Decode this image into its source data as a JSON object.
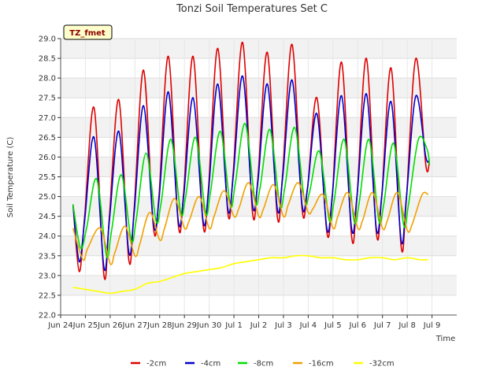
{
  "chart_data": {
    "type": "line",
    "title": "Tonzi Soil Temperatures Set C",
    "xlabel": "Time",
    "ylabel": "Soil Temperature (C)",
    "badge": "TZ_fmet",
    "ylim": [
      22.0,
      29.0
    ],
    "yticks": [
      "22.0",
      "22.5",
      "23.0",
      "23.5",
      "24.0",
      "24.5",
      "25.0",
      "25.5",
      "26.0",
      "26.5",
      "27.0",
      "27.5",
      "28.0",
      "28.5",
      "29.0"
    ],
    "xlim": [
      0,
      16
    ],
    "xticks": [
      "Jun 24",
      "Jun 25",
      "Jun 26",
      "Jun 27",
      "Jun 28",
      "Jun 29",
      "Jun 30",
      "Jul 1",
      "Jul 2",
      "Jul 3",
      "Jul 4",
      "Jul 5",
      "Jul 6",
      "Jul 7",
      "Jul 8",
      "Jul 9"
    ],
    "x_unit": "days since Jun 24",
    "grid": true,
    "legend_position": "bottom",
    "series": [
      {
        "name": "-2cm",
        "color": "#dd0000",
        "x": [
          0.5,
          0.75,
          0.97,
          1.35,
          1.75,
          1.97,
          2.35,
          2.75,
          2.97,
          3.35,
          3.75,
          3.97,
          4.35,
          4.75,
          4.97,
          5.35,
          5.75,
          5.97,
          6.35,
          6.75,
          6.97,
          7.35,
          7.75,
          7.97,
          8.35,
          8.75,
          8.97,
          9.35,
          9.75,
          9.97,
          10.35,
          10.75,
          10.97,
          11.35,
          11.75,
          11.97,
          12.35,
          12.75,
          12.97,
          13.35,
          13.75,
          13.97,
          14.35,
          14.75,
          14.9
        ],
        "y": [
          24.8,
          23.1,
          24.5,
          27.25,
          23.0,
          24.5,
          27.45,
          23.4,
          24.7,
          28.2,
          24.2,
          25.0,
          28.55,
          24.3,
          25.1,
          28.55,
          24.3,
          25.2,
          28.75,
          24.6,
          25.6,
          28.9,
          24.6,
          25.5,
          28.65,
          24.5,
          25.6,
          28.85,
          24.7,
          25.2,
          27.5,
          24.1,
          25.0,
          28.4,
          24.0,
          25.0,
          28.5,
          24.1,
          25.0,
          28.25,
          23.75,
          25.0,
          28.5,
          25.8,
          25.9
        ]
      },
      {
        "name": "-4cm",
        "color": "#0000cc",
        "x": [
          0.5,
          0.75,
          0.97,
          1.35,
          1.75,
          1.97,
          2.35,
          2.75,
          2.97,
          3.35,
          3.75,
          3.97,
          4.35,
          4.75,
          4.97,
          5.35,
          5.75,
          5.97,
          6.35,
          6.75,
          6.97,
          7.35,
          7.75,
          7.97,
          8.35,
          8.75,
          8.97,
          9.35,
          9.75,
          9.97,
          10.35,
          10.75,
          10.97,
          11.35,
          11.75,
          11.97,
          12.35,
          12.75,
          12.97,
          13.35,
          13.75,
          13.97,
          14.35,
          14.75,
          14.9
        ],
        "y": [
          24.8,
          23.35,
          24.4,
          26.5,
          23.2,
          24.4,
          26.65,
          23.6,
          24.6,
          27.3,
          24.3,
          24.9,
          27.65,
          24.4,
          25.0,
          27.5,
          24.4,
          25.1,
          27.85,
          24.7,
          25.5,
          28.05,
          24.8,
          25.4,
          27.85,
          24.7,
          25.5,
          27.95,
          24.8,
          25.2,
          27.1,
          24.2,
          25.0,
          27.55,
          24.2,
          25.0,
          27.6,
          24.2,
          25.0,
          27.4,
          23.9,
          25.0,
          27.55,
          26.0,
          25.95
        ]
      },
      {
        "name": "-8cm",
        "color": "#00dd00",
        "x": [
          0.5,
          0.8,
          1.05,
          1.45,
          1.85,
          2.05,
          2.45,
          2.85,
          3.05,
          3.45,
          3.85,
          4.05,
          4.45,
          4.85,
          5.05,
          5.45,
          5.85,
          6.05,
          6.45,
          6.85,
          7.05,
          7.45,
          7.85,
          8.05,
          8.45,
          8.85,
          9.05,
          9.45,
          9.85,
          10.05,
          10.45,
          10.85,
          11.05,
          11.45,
          11.85,
          12.05,
          12.45,
          12.85,
          13.05,
          13.45,
          13.85,
          14.05,
          14.45,
          14.8,
          14.9
        ],
        "y": [
          24.8,
          23.7,
          24.2,
          25.45,
          23.5,
          24.1,
          25.55,
          23.9,
          24.4,
          26.1,
          24.4,
          24.8,
          26.45,
          24.6,
          25.0,
          26.5,
          24.6,
          25.1,
          26.65,
          24.8,
          25.3,
          26.85,
          24.9,
          25.2,
          26.7,
          24.8,
          25.2,
          26.75,
          24.9,
          25.1,
          26.15,
          24.4,
          24.9,
          26.45,
          24.4,
          24.8,
          26.45,
          24.4,
          24.8,
          26.35,
          24.3,
          24.8,
          26.45,
          26.2,
          25.8
        ]
      },
      {
        "name": "-16cm",
        "color": "#f0a000",
        "x": [
          0.5,
          0.9,
          1.1,
          1.6,
          2.0,
          2.2,
          2.6,
          3.0,
          3.2,
          3.6,
          4.0,
          4.2,
          4.6,
          5.0,
          5.2,
          5.6,
          6.0,
          6.2,
          6.6,
          7.0,
          7.2,
          7.6,
          8.0,
          8.2,
          8.6,
          9.0,
          9.2,
          9.6,
          10.0,
          10.2,
          10.6,
          11.0,
          11.2,
          11.6,
          12.0,
          12.2,
          12.6,
          13.0,
          13.2,
          13.6,
          14.0,
          14.2,
          14.6,
          14.85
        ],
        "y": [
          24.2,
          23.4,
          23.7,
          24.2,
          23.3,
          23.6,
          24.25,
          23.5,
          23.8,
          24.6,
          23.9,
          24.2,
          24.95,
          24.2,
          24.4,
          25.0,
          24.2,
          24.5,
          25.15,
          24.5,
          24.7,
          25.35,
          24.5,
          24.7,
          25.3,
          24.5,
          24.8,
          25.35,
          24.6,
          24.7,
          25.05,
          24.2,
          24.5,
          25.1,
          24.2,
          24.4,
          25.1,
          24.2,
          24.4,
          25.1,
          24.15,
          24.3,
          25.05,
          25.05
        ]
      },
      {
        "name": "-32cm",
        "color": "#ffff00",
        "x": [
          0.5,
          1.0,
          1.5,
          2.0,
          2.5,
          3.0,
          3.5,
          4.0,
          4.5,
          5.0,
          5.5,
          6.0,
          6.5,
          7.0,
          7.5,
          8.0,
          8.5,
          9.0,
          9.5,
          10.0,
          10.5,
          11.0,
          11.5,
          12.0,
          12.5,
          13.0,
          13.5,
          14.0,
          14.5,
          14.85
        ],
        "y": [
          22.7,
          22.65,
          22.6,
          22.55,
          22.6,
          22.65,
          22.8,
          22.85,
          22.95,
          23.05,
          23.1,
          23.15,
          23.2,
          23.3,
          23.35,
          23.4,
          23.45,
          23.45,
          23.5,
          23.5,
          23.45,
          23.45,
          23.4,
          23.4,
          23.45,
          23.45,
          23.4,
          23.45,
          23.4,
          23.4
        ]
      }
    ]
  }
}
